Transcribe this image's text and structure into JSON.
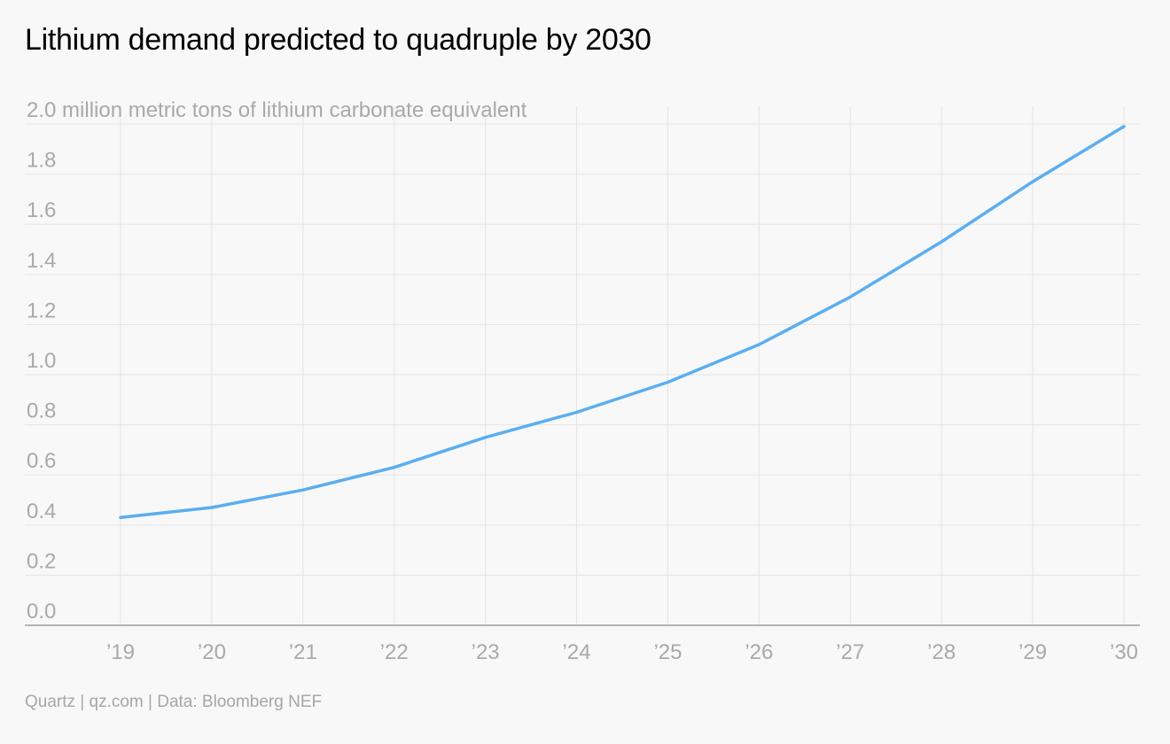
{
  "title": "Lithium demand predicted to quadruple by 2030",
  "footer": "Quartz | qz.com | Data: Bloomberg NEF",
  "chart_data": {
    "type": "line",
    "title": "Lithium demand predicted to quadruple by 2030",
    "ylabel": "million metric tons of lithium carbonate equivalent",
    "xlabel": "",
    "top_tick_label": "2.0 million metric tons of lithium carbonate equivalent",
    "x": [
      "’19",
      "’20",
      "’21",
      "’22",
      "’23",
      "’24",
      "’25",
      "’26",
      "’27",
      "’28",
      "’29",
      "’30"
    ],
    "y_ticks": [
      0.0,
      0.2,
      0.4,
      0.6,
      0.8,
      1.0,
      1.2,
      1.4,
      1.6,
      1.8,
      2.0
    ],
    "y_tick_labels": [
      "0.0",
      "0.2",
      "0.4",
      "0.6",
      "0.8",
      "1.0",
      "1.2",
      "1.4",
      "1.6",
      "1.8"
    ],
    "ylim": [
      0,
      2.0
    ],
    "grid": true,
    "legend": "none",
    "series": [
      {
        "values": [
          0.43,
          0.47,
          0.54,
          0.63,
          0.75,
          0.85,
          0.97,
          1.12,
          1.31,
          1.53,
          1.77,
          1.99
        ],
        "color": "#5aaef0"
      }
    ]
  }
}
